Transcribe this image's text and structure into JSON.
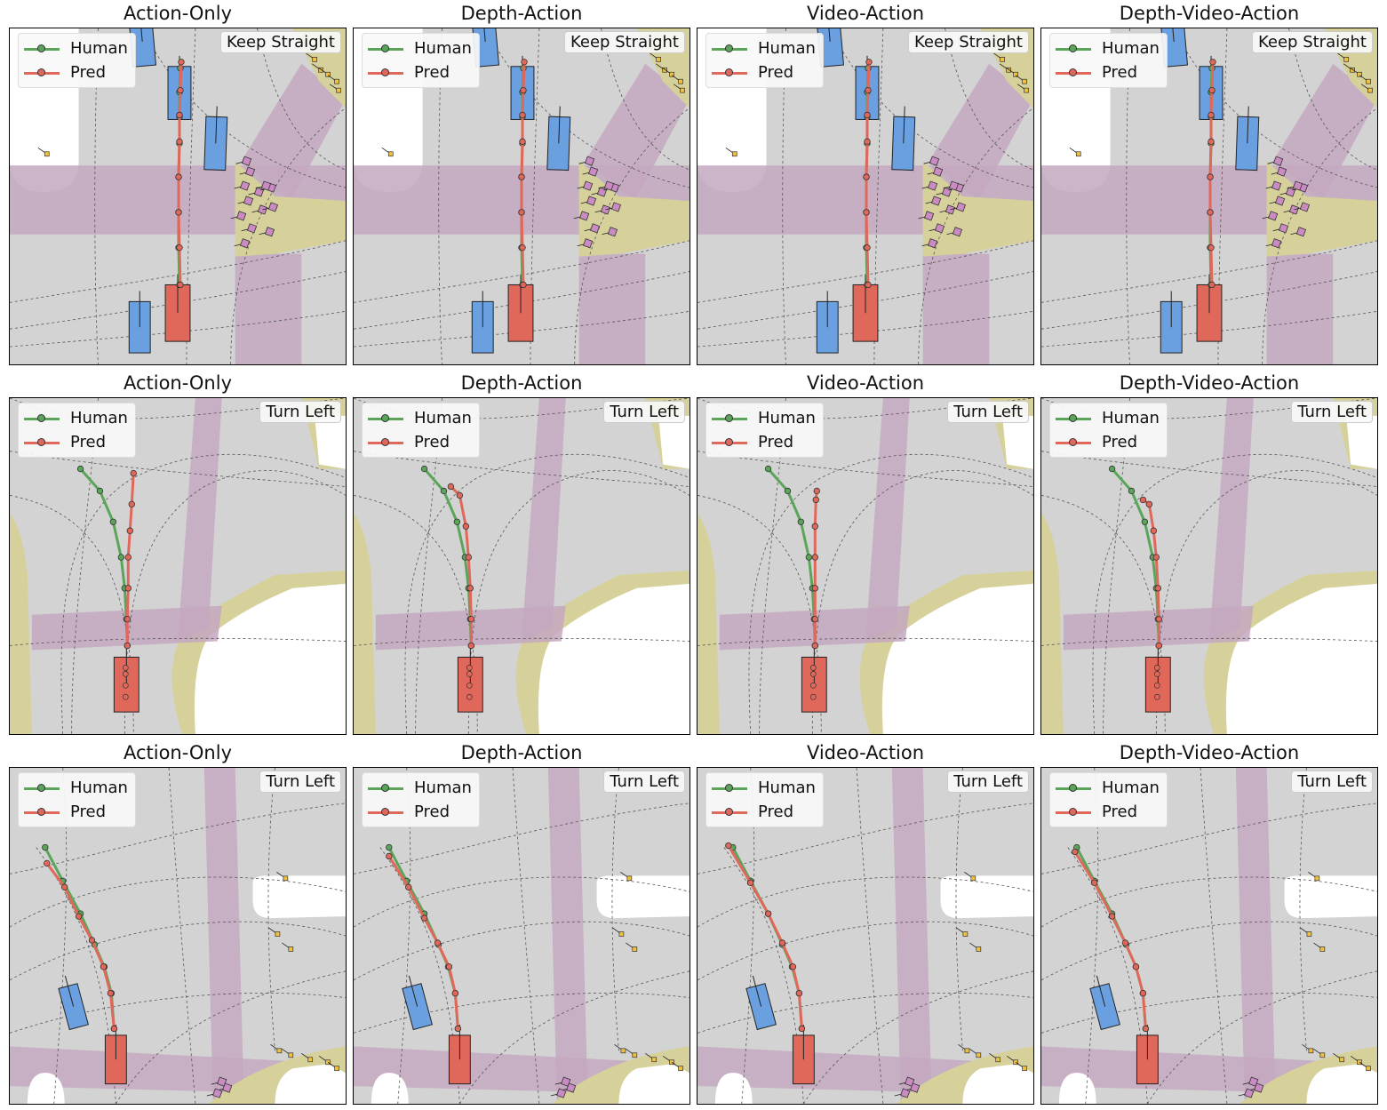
{
  "figure": {
    "rows": [
      {
        "command": "Keep Straight",
        "panels": [
          {
            "title": "Action-Only"
          },
          {
            "title": "Depth-Action"
          },
          {
            "title": "Video-Action"
          },
          {
            "title": "Depth-Video-Action"
          }
        ]
      },
      {
        "command": "Turn Left",
        "panels": [
          {
            "title": "Action-Only"
          },
          {
            "title": "Depth-Action"
          },
          {
            "title": "Video-Action"
          },
          {
            "title": "Depth-Video-Action"
          }
        ]
      },
      {
        "command": "Turn Left",
        "panels": [
          {
            "title": "Action-Only"
          },
          {
            "title": "Depth-Action"
          },
          {
            "title": "Video-Action"
          },
          {
            "title": "Depth-Video-Action"
          }
        ]
      }
    ],
    "legend": {
      "human_label": "Human",
      "pred_label": "Pred"
    },
    "colors": {
      "human": "#5aa55a",
      "pred": "#e0685a",
      "ego": "#e0685a",
      "agent": "#6a9fe0",
      "road": "#d3d3d3",
      "offroad": "#ffffff",
      "sidewalk": "#d6d19b",
      "crosswalk": "#c4a8bf",
      "pedestrian": "#c98bc2",
      "sign": "#f0c040"
    }
  }
}
